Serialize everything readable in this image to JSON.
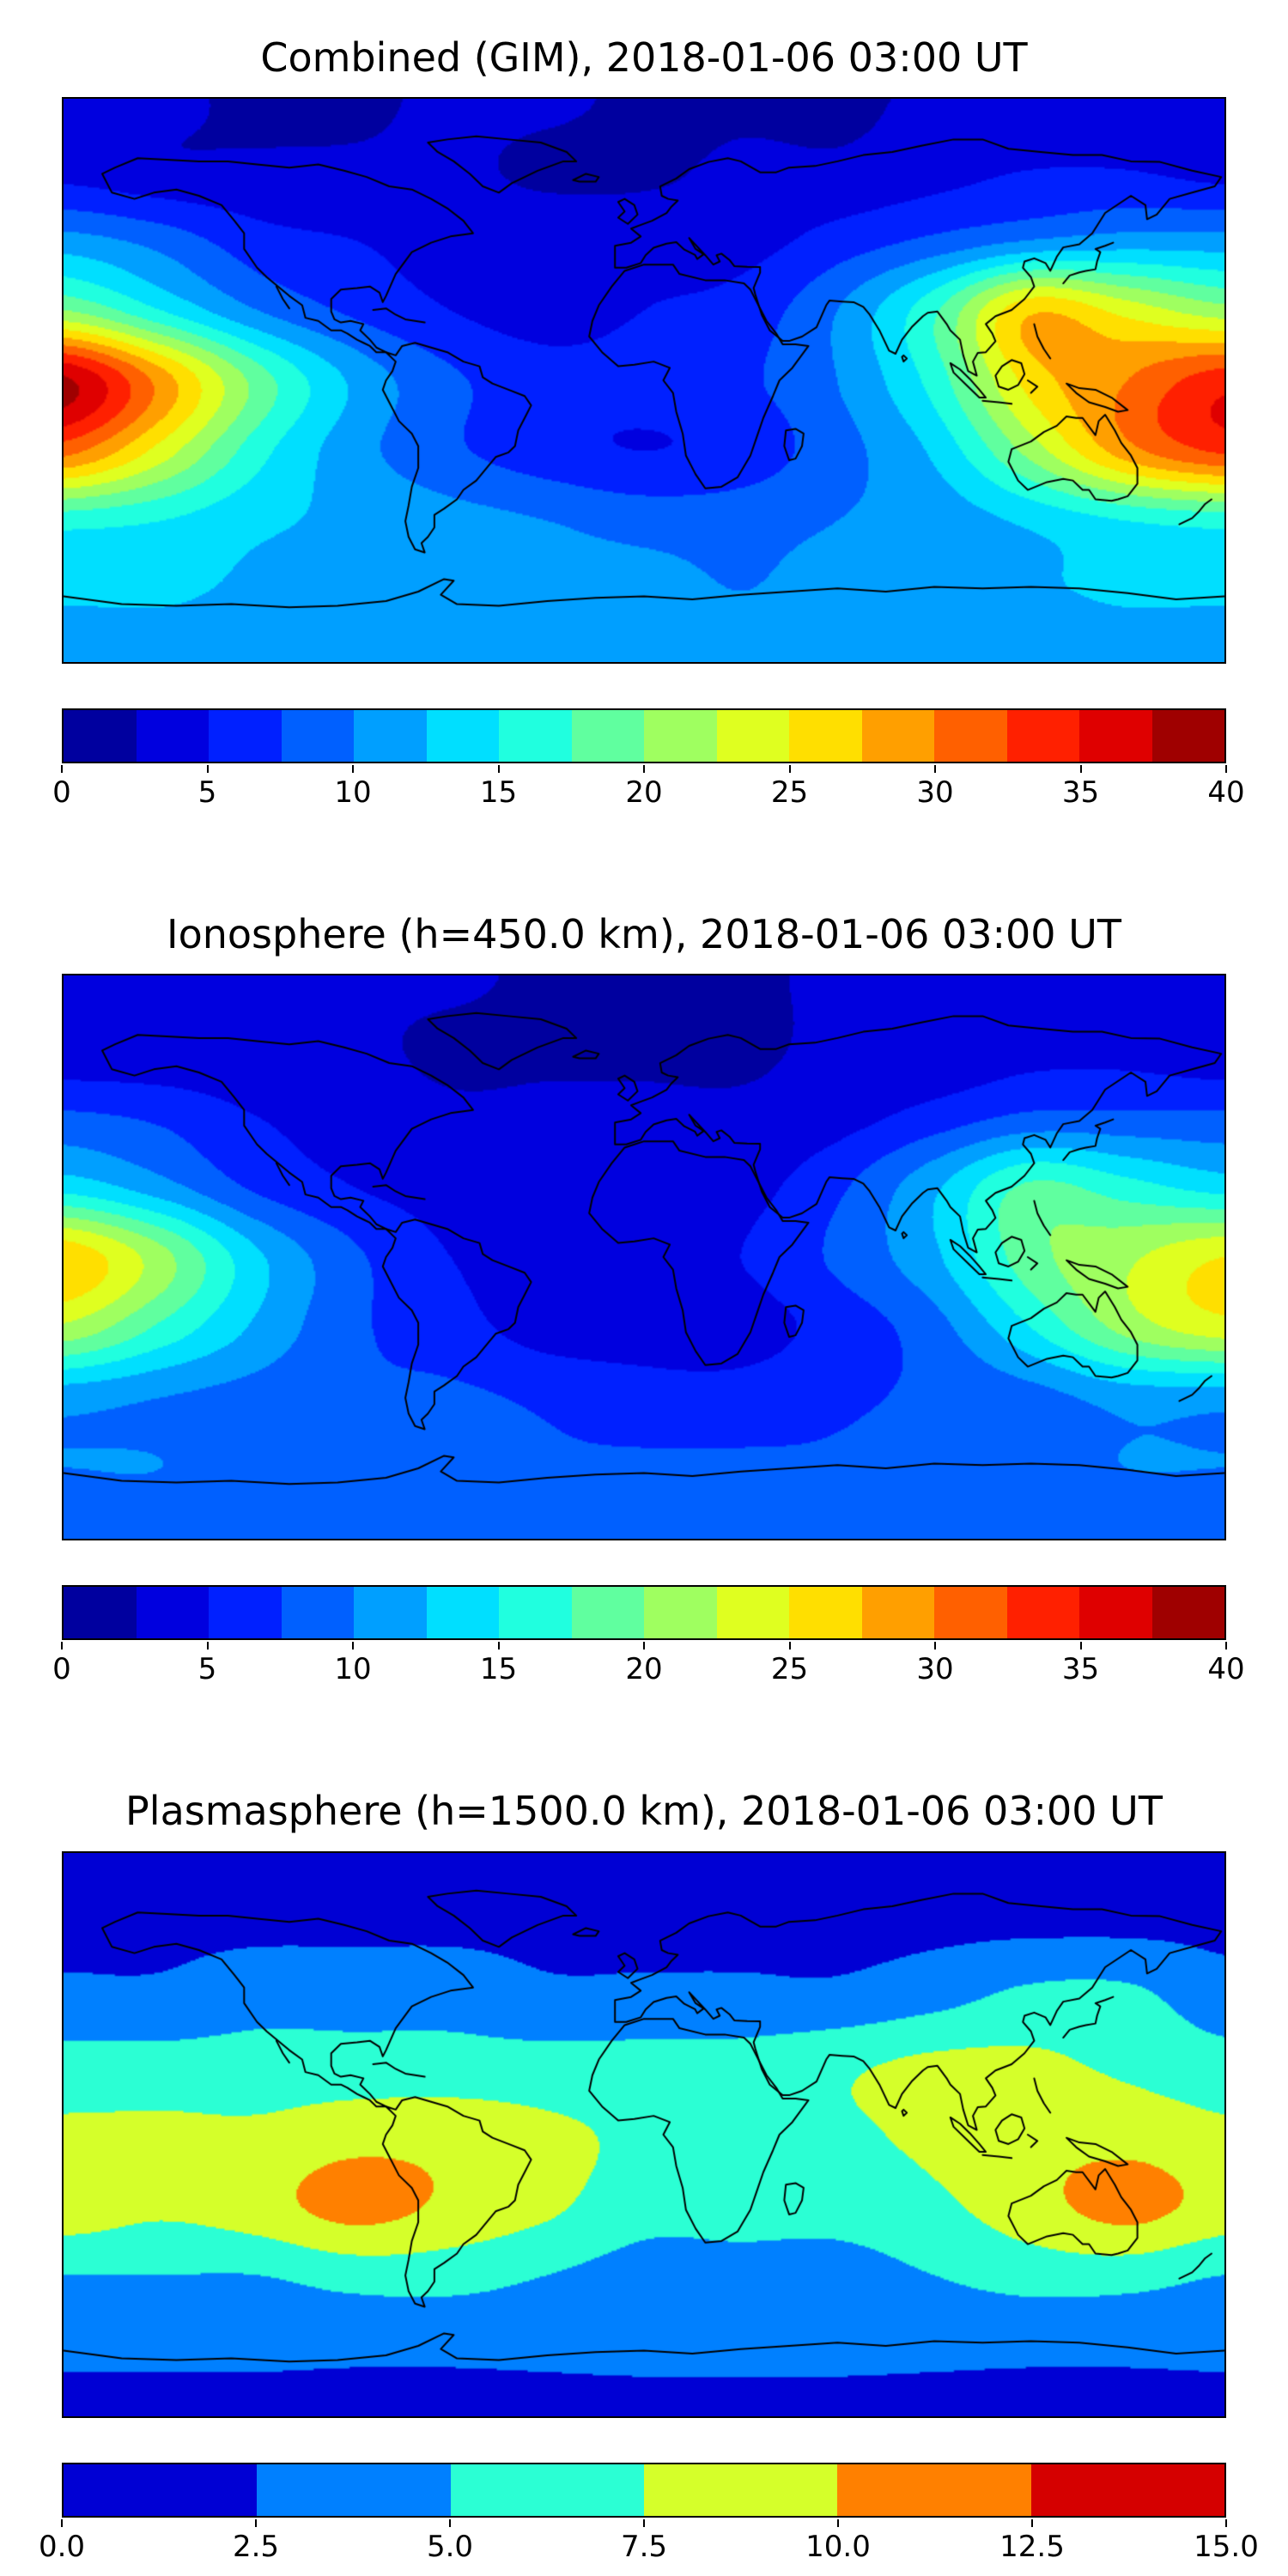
{
  "figure": {
    "background": "#ffffff",
    "colormap": "jet"
  },
  "chart_data": [
    {
      "type": "heatmap",
      "title": "Combined (GIM), 2018-01-06 03:00 UT",
      "projection": "equirectangular",
      "lon_range": [
        -180,
        180
      ],
      "lat_range": [
        -90,
        90
      ],
      "colormap": "jet",
      "levels": {
        "min": 0,
        "max": 40,
        "step": 2.5
      },
      "colorbar_ticks": [
        0,
        5,
        10,
        15,
        20,
        25,
        30,
        35,
        40
      ],
      "tick_labels": [
        "0",
        "5",
        "10",
        "15",
        "20",
        "25",
        "30",
        "35",
        "40"
      ],
      "grid_lons": [
        -180,
        -150,
        -120,
        -90,
        -60,
        -30,
        0,
        30,
        60,
        90,
        120,
        150,
        180
      ],
      "grid_lats": [
        90,
        67.5,
        45,
        22.5,
        0,
        -22.5,
        -45,
        -67.5,
        -90
      ],
      "values": [
        [
          3,
          3,
          2,
          2,
          3,
          3,
          2,
          2,
          2,
          3,
          4,
          4,
          3
        ],
        [
          4,
          3,
          3,
          3,
          3,
          2,
          2,
          3,
          3,
          4,
          5,
          5,
          4
        ],
        [
          11,
          9,
          6,
          5,
          4,
          4,
          4,
          4,
          6,
          8,
          10,
          11,
          11
        ],
        [
          20,
          15,
          10,
          7,
          5,
          4,
          5,
          6,
          10,
          17,
          27,
          24,
          21
        ],
        [
          38,
          29,
          19,
          12,
          8,
          6,
          6,
          7,
          10,
          16,
          26,
          30,
          34
        ],
        [
          31,
          24,
          16,
          11,
          8,
          6,
          5,
          6,
          9,
          13,
          21,
          29,
          33
        ],
        [
          16,
          15,
          13,
          12,
          11,
          10,
          9,
          9,
          10,
          11,
          13,
          15,
          16
        ],
        [
          13,
          13,
          12,
          12,
          12,
          11,
          11,
          10,
          11,
          11,
          12,
          13,
          13
        ],
        [
          11,
          11,
          11,
          11,
          11,
          11,
          11,
          11,
          11,
          11,
          11,
          11,
          11
        ]
      ]
    },
    {
      "type": "heatmap",
      "title": "Ionosphere (h=450.0 km), 2018-01-06 03:00 UT",
      "projection": "equirectangular",
      "lon_range": [
        -180,
        180
      ],
      "lat_range": [
        -90,
        90
      ],
      "colormap": "jet",
      "levels": {
        "min": 0,
        "max": 40,
        "step": 2.5
      },
      "colorbar_ticks": [
        0,
        5,
        10,
        15,
        20,
        25,
        30,
        35,
        40
      ],
      "tick_labels": [
        "0",
        "5",
        "10",
        "15",
        "20",
        "25",
        "30",
        "35",
        "40"
      ],
      "grid_lons": [
        -180,
        -150,
        -120,
        -90,
        -60,
        -30,
        0,
        30,
        60,
        90,
        120,
        150,
        180
      ],
      "grid_lats": [
        90,
        67.5,
        45,
        22.5,
        0,
        -22.5,
        -45,
        -67.5,
        -90
      ],
      "values": [
        [
          3,
          3,
          3,
          3,
          3,
          2,
          2,
          2,
          3,
          3,
          3,
          3,
          3
        ],
        [
          3,
          3,
          3,
          3,
          2,
          2,
          2,
          2,
          3,
          3,
          4,
          4,
          3
        ],
        [
          8,
          7,
          5,
          4,
          3,
          3,
          3,
          3,
          4,
          6,
          8,
          8,
          8
        ],
        [
          14,
          11,
          7,
          5,
          4,
          3,
          3,
          4,
          7,
          12,
          18,
          16,
          14
        ],
        [
          27,
          21,
          13,
          8,
          5,
          4,
          4,
          5,
          8,
          12,
          19,
          22,
          25
        ],
        [
          22,
          17,
          12,
          8,
          6,
          4,
          4,
          4,
          6,
          9,
          15,
          21,
          24
        ],
        [
          11,
          10,
          9,
          8,
          8,
          7,
          6,
          6,
          7,
          8,
          9,
          11,
          11
        ],
        [
          10,
          10,
          9,
          9,
          9,
          8,
          8,
          8,
          8,
          9,
          9,
          10,
          10
        ],
        [
          9,
          9,
          9,
          9,
          9,
          9,
          9,
          9,
          9,
          9,
          9,
          9,
          9
        ]
      ]
    },
    {
      "type": "heatmap",
      "title": "Plasmasphere (h=1500.0 km), 2018-01-06 03:00 UT",
      "projection": "equirectangular",
      "lon_range": [
        -180,
        180
      ],
      "lat_range": [
        -90,
        90
      ],
      "colormap": "jet",
      "levels": {
        "min": 0,
        "max": 15,
        "step": 2.5
      },
      "colorbar_ticks": [
        0.0,
        2.5,
        5.0,
        7.5,
        10.0,
        12.5,
        15.0
      ],
      "tick_labels": [
        "0.0",
        "2.5",
        "5.0",
        "7.5",
        "10.0",
        "12.5",
        "15.0"
      ],
      "grid_lons": [
        -180,
        -150,
        -120,
        -90,
        -60,
        -30,
        0,
        30,
        60,
        90,
        120,
        150,
        180
      ],
      "grid_lats": [
        90,
        67.5,
        45,
        22.5,
        0,
        -22.5,
        -45,
        -67.5,
        -90
      ],
      "values": [
        [
          2,
          2,
          2,
          2,
          2,
          2,
          2,
          2,
          2,
          2,
          2,
          2,
          2
        ],
        [
          2,
          2,
          2,
          2,
          2,
          2,
          2,
          2,
          2,
          2,
          2,
          2,
          2
        ],
        [
          3,
          3,
          4,
          4,
          4,
          3,
          3,
          3,
          3,
          4,
          5.5,
          5.5,
          3.5
        ],
        [
          6,
          6,
          6,
          6,
          6,
          6,
          6,
          6,
          7,
          8,
          8,
          7,
          6
        ],
        [
          8,
          8,
          8,
          9,
          9,
          8,
          7,
          6,
          7,
          8,
          9,
          9,
          8
        ],
        [
          9,
          8,
          9,
          11,
          9.5,
          8,
          6,
          6,
          6,
          7,
          9,
          11,
          9
        ],
        [
          5,
          5,
          5,
          6,
          6,
          5,
          4,
          4,
          4,
          5,
          6,
          6,
          5
        ],
        [
          3,
          3,
          3,
          3,
          3,
          3,
          3,
          3,
          3,
          3,
          3,
          3,
          3
        ],
        [
          2,
          2,
          2,
          2,
          2,
          2,
          2,
          2,
          2,
          2,
          2,
          2,
          2
        ]
      ]
    }
  ]
}
